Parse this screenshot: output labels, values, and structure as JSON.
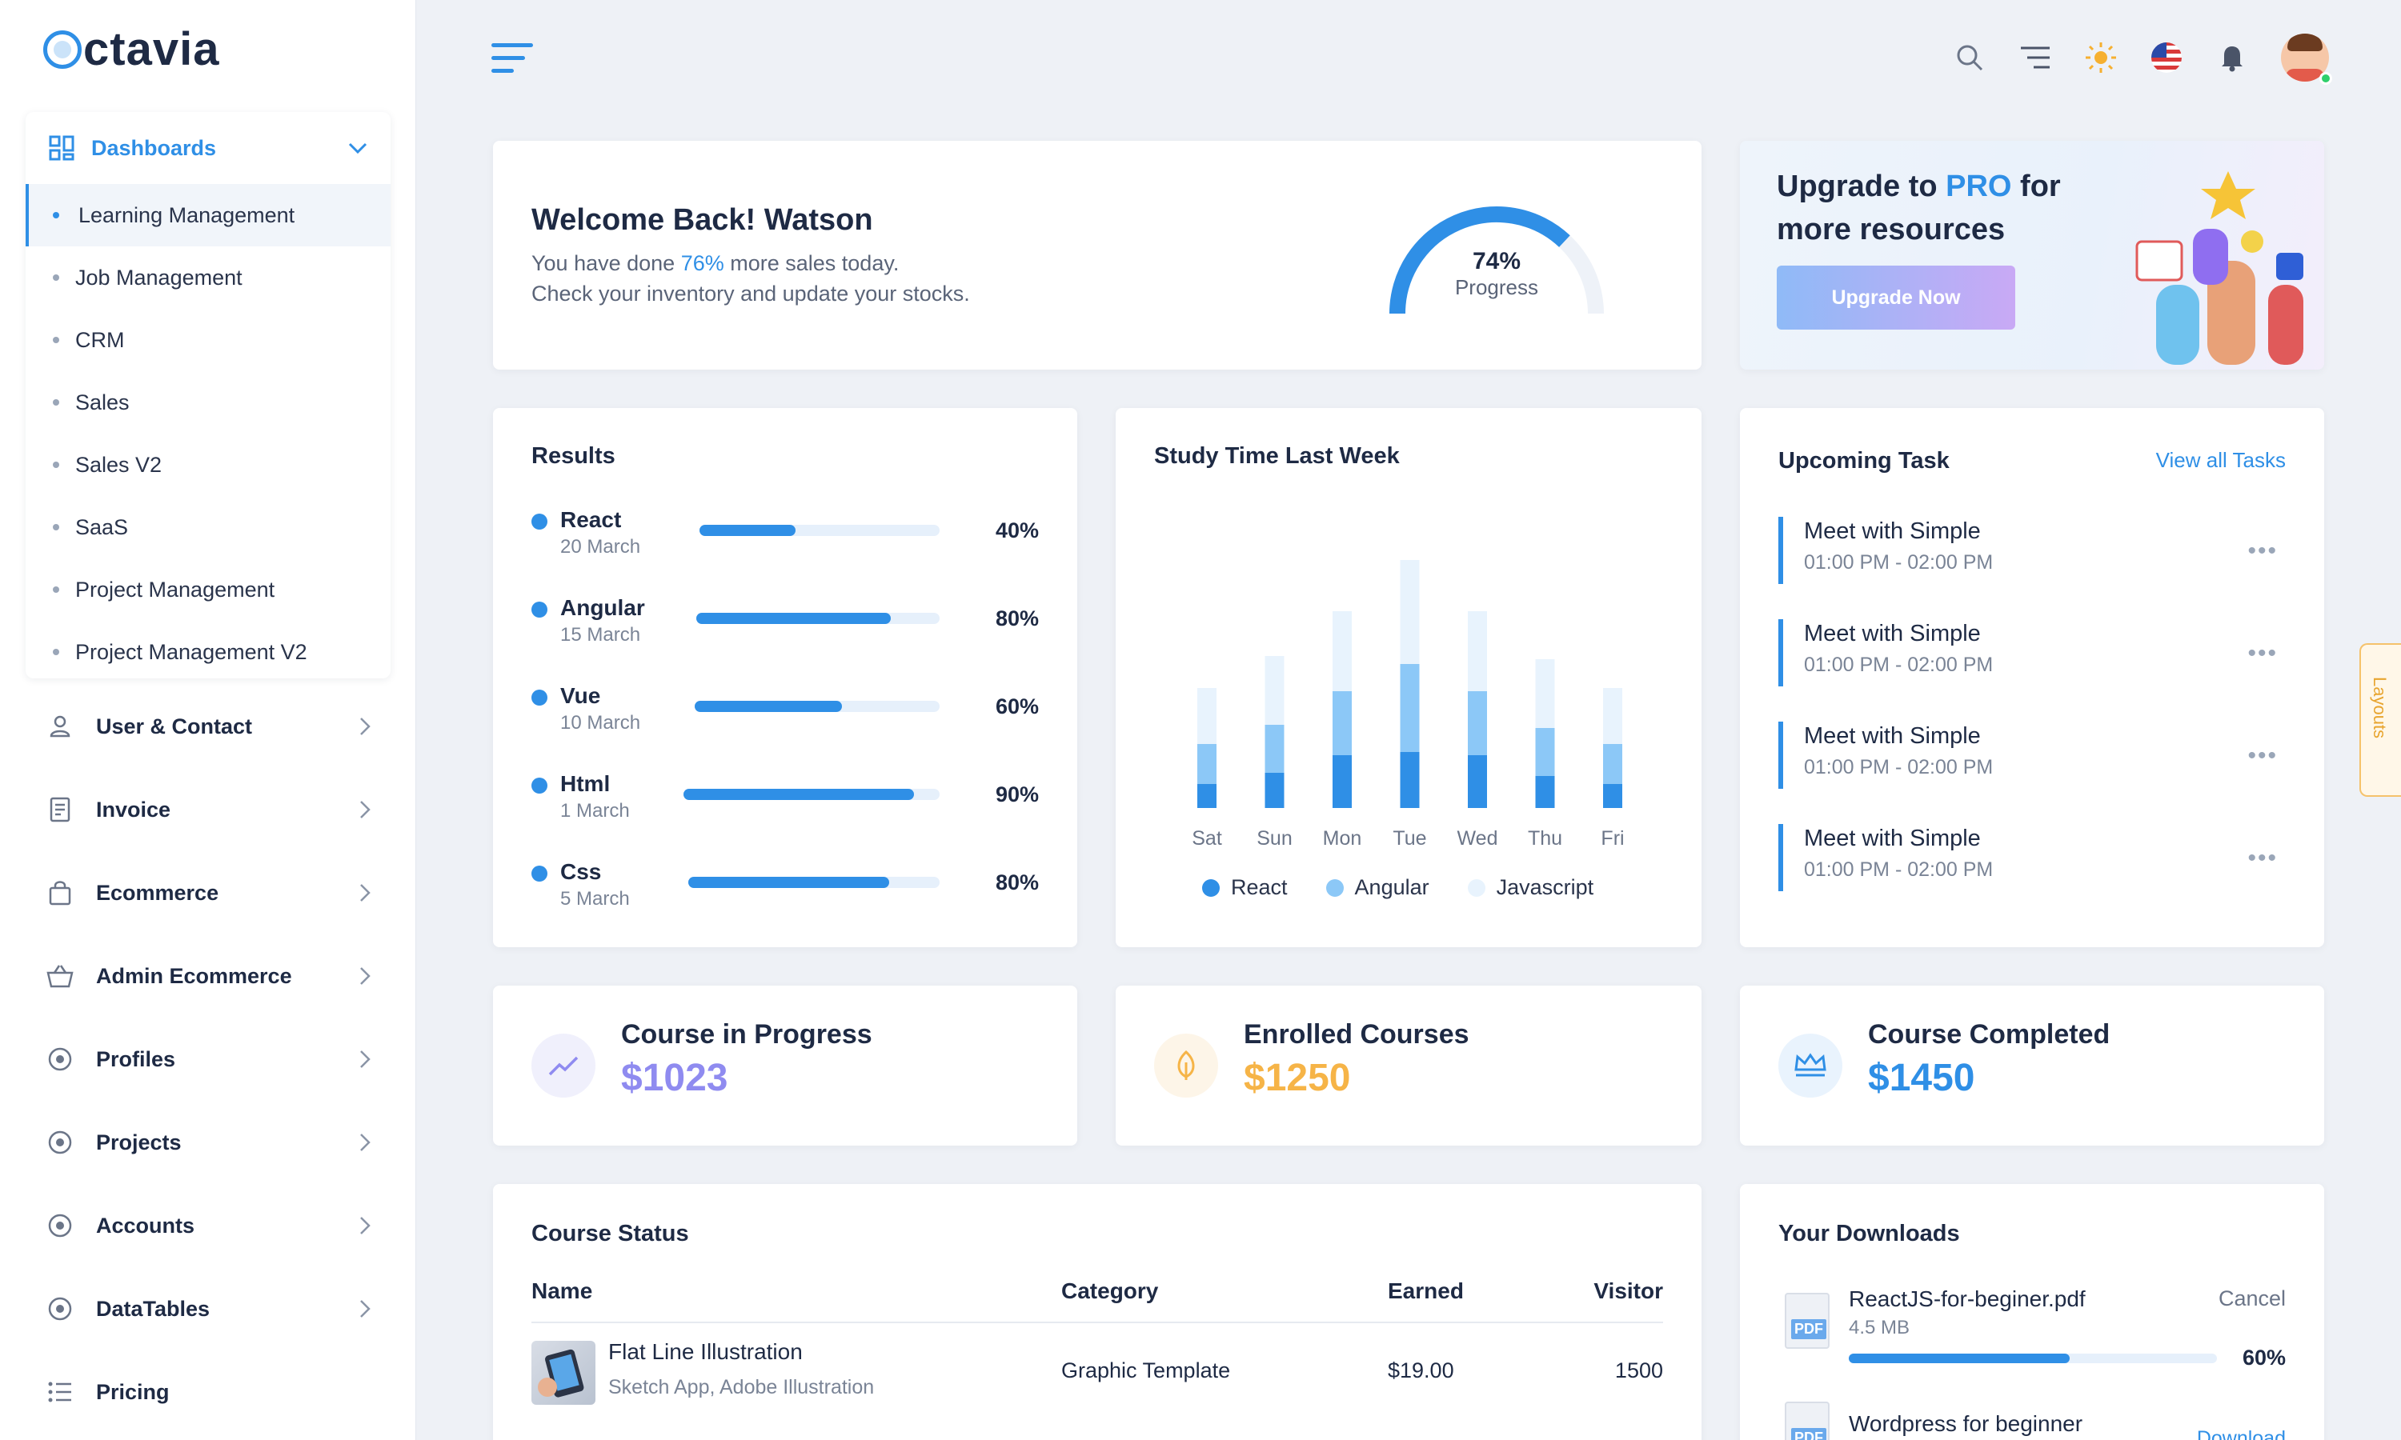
{
  "brand": {
    "name": "ctavia"
  },
  "sidebar": {
    "dashboards_label": "Dashboards",
    "dashboard_items": [
      "Learning Management",
      "Job Management",
      "CRM",
      "Sales",
      "Sales V2",
      "SaaS",
      "Project Management",
      "Project Management V2"
    ],
    "menu": [
      {
        "label": "User & Contact",
        "icon": "user-icon"
      },
      {
        "label": "Invoice",
        "icon": "invoice-icon"
      },
      {
        "label": "Ecommerce",
        "icon": "bag-icon"
      },
      {
        "label": "Admin Ecommerce",
        "icon": "basket-icon"
      },
      {
        "label": "Profiles",
        "icon": "circle-icon"
      },
      {
        "label": "Projects",
        "icon": "circle-icon"
      },
      {
        "label": "Accounts",
        "icon": "circle-icon"
      },
      {
        "label": "DataTables",
        "icon": "circle-icon"
      },
      {
        "label": "Pricing",
        "icon": "list-icon"
      }
    ]
  },
  "welcome": {
    "title": "Welcome Back! Watson",
    "line1_pre": "You have done ",
    "line1_accent": "76%",
    "line1_post": " more sales today.",
    "line2": "Check your inventory and update your stocks.",
    "gauge_value": "74%",
    "gauge_label": "Progress",
    "gauge_fraction": 0.74
  },
  "upgrade": {
    "title_pre": "Upgrade to ",
    "title_pro": "PRO",
    "title_post": " for more resources",
    "button": "Upgrade Now"
  },
  "results": {
    "title": "Results",
    "items": [
      {
        "name": "React",
        "date": "20 March",
        "pct": "40%",
        "value": 0.4
      },
      {
        "name": "Angular",
        "date": "15 March",
        "pct": "80%",
        "value": 0.8
      },
      {
        "name": "Vue",
        "date": "10 March",
        "pct": "60%",
        "value": 0.6
      },
      {
        "name": "Html",
        "date": "1 March",
        "pct": "90%",
        "value": 0.9
      },
      {
        "name": "Css",
        "date": "5 March",
        "pct": "80%",
        "value": 0.8
      }
    ]
  },
  "chart_data": {
    "type": "bar",
    "title": "Study Time Last Week",
    "categories": [
      "Sat",
      "Sun",
      "Mon",
      "Tue",
      "Wed",
      "Thu",
      "Fri"
    ],
    "series": [
      {
        "name": "React",
        "color": "#2f8fe6",
        "values": [
          15,
          22,
          33,
          35,
          33,
          20,
          15
        ]
      },
      {
        "name": "Angular",
        "color": "#8cc8f7",
        "values": [
          25,
          30,
          40,
          55,
          40,
          30,
          25
        ]
      },
      {
        "name": "Javascript",
        "color": "#e8f3fd",
        "values": [
          35,
          43,
          50,
          65,
          50,
          43,
          35
        ]
      }
    ],
    "ylim": [
      0,
      160
    ]
  },
  "tasks": {
    "title": "Upcoming Task",
    "view_all": "View all Tasks",
    "items": [
      {
        "title": "Meet with Simple",
        "time": "01:00 PM - 02:00 PM"
      },
      {
        "title": "Meet with Simple",
        "time": "01:00 PM - 02:00 PM"
      },
      {
        "title": "Meet with Simple",
        "time": "01:00 PM - 02:00 PM"
      },
      {
        "title": "Meet with Simple",
        "time": "01:00 PM - 02:00 PM"
      }
    ]
  },
  "stats": [
    {
      "label": "Course in Progress",
      "value": "$1023",
      "color": "#8f8bf0",
      "bg": "#f0f0fc",
      "icon": "trend-icon"
    },
    {
      "label": "Enrolled Courses",
      "value": "$1250",
      "color": "#f6b447",
      "bg": "#fdf5e8",
      "icon": "leaf-icon"
    },
    {
      "label": "Course Completed",
      "value": "$1450",
      "color": "#2f8fe6",
      "bg": "#e9f3fd",
      "icon": "crown-icon"
    }
  ],
  "course_status": {
    "title": "Course Status",
    "columns": [
      "Name",
      "Category",
      "Earned",
      "Visitor"
    ],
    "rows": [
      {
        "name": "Flat Line Illustration",
        "sub": "Sketch App, Adobe Illustration",
        "category": "Graphic Template",
        "earned": "$19.00",
        "visitor": "1500"
      }
    ]
  },
  "downloads": {
    "title": "Your Downloads",
    "items": [
      {
        "name": "ReactJS-for-beginer.pdf",
        "size": "4.5 MB",
        "action": "Cancel",
        "pct": "60%",
        "value": 0.6,
        "badge": "PDF"
      },
      {
        "name": "Wordpress for beginner",
        "action": "Download",
        "badge": "PDF"
      }
    ]
  },
  "layouts_tab": "Layouts"
}
